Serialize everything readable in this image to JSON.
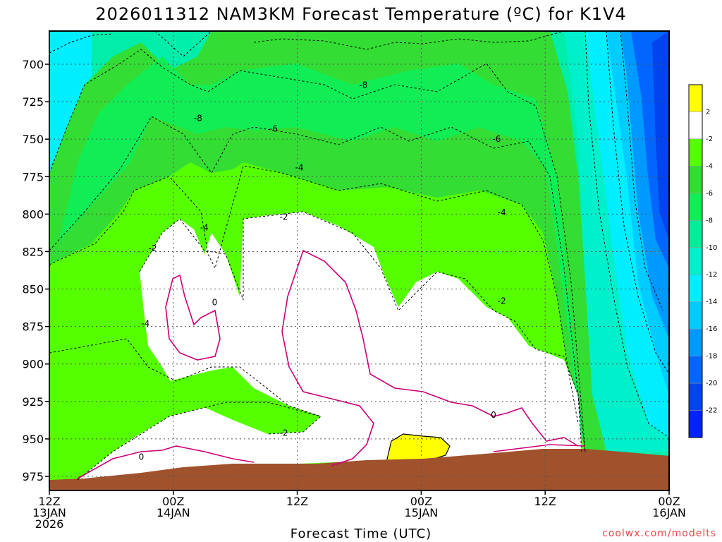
{
  "chart_data": {
    "type": "heatmap",
    "title": "2026011312 NAM3KM Forecast Temperature (ºC) for K1V4",
    "xlabel": "Forecast Time (UTC)",
    "ylabel": "",
    "y_ticks": [
      700,
      725,
      750,
      775,
      800,
      825,
      850,
      875,
      900,
      925,
      950,
      975
    ],
    "ylim": [
      985,
      680
    ],
    "x_ticks": [
      {
        "hour": 0,
        "line1": "12Z",
        "line2": "13JAN",
        "line3": "2026"
      },
      {
        "hour": 12,
        "line1": "00Z",
        "line2": "14JAN",
        "line3": ""
      },
      {
        "hour": 24,
        "line1": "12Z",
        "line2": "",
        "line3": ""
      },
      {
        "hour": 36,
        "line1": "00Z",
        "line2": "15JAN",
        "line3": ""
      },
      {
        "hour": 48,
        "line1": "12Z",
        "line2": "",
        "line3": ""
      },
      {
        "hour": 60,
        "line1": "00Z",
        "line2": "16JAN",
        "line3": ""
      }
    ],
    "xlim": [
      0,
      60
    ],
    "grid": true,
    "colorbar": {
      "levels": [
        "2",
        "-2",
        "-4",
        "-6",
        "-8",
        "-10",
        "-12",
        "-14",
        "-16",
        "-18",
        "-20",
        "-22"
      ],
      "colors": [
        "#ffff00",
        "#ffffff",
        "#55ff00",
        "#33dd33",
        "#11ee55",
        "#00ee99",
        "#00f0cc",
        "#00eeff",
        "#00ccff",
        "#0099ff",
        "#0066ff",
        "#0044ee",
        "#0022ff"
      ]
    },
    "contour_labels": [
      {
        "hour": 14.4,
        "pressure": 736,
        "text": "-8"
      },
      {
        "hour": 30.4,
        "pressure": 714,
        "text": "-8"
      },
      {
        "hour": 43.3,
        "pressure": 750,
        "text": "-6"
      },
      {
        "hour": 21.7,
        "pressure": 743,
        "text": "-6"
      },
      {
        "hour": 24.2,
        "pressure": 769,
        "text": "-4"
      },
      {
        "hour": 43.8,
        "pressure": 799,
        "text": "-4"
      },
      {
        "hour": 15.0,
        "pressure": 809,
        "text": "-4"
      },
      {
        "hour": 9.3,
        "pressure": 873,
        "text": "-4"
      },
      {
        "hour": 22.7,
        "pressure": 802,
        "text": "-2"
      },
      {
        "hour": 10.0,
        "pressure": 823,
        "text": "-2"
      },
      {
        "hour": 43.8,
        "pressure": 858,
        "text": "-2"
      },
      {
        "hour": 22.7,
        "pressure": 946,
        "text": "-2"
      },
      {
        "hour": 16.0,
        "pressure": 859,
        "text": "0"
      },
      {
        "hour": 8.9,
        "pressure": 962,
        "text": "0"
      },
      {
        "hour": 43.0,
        "pressure": 934,
        "text": "0"
      }
    ]
  },
  "credit": "coolwx.com/modelts"
}
